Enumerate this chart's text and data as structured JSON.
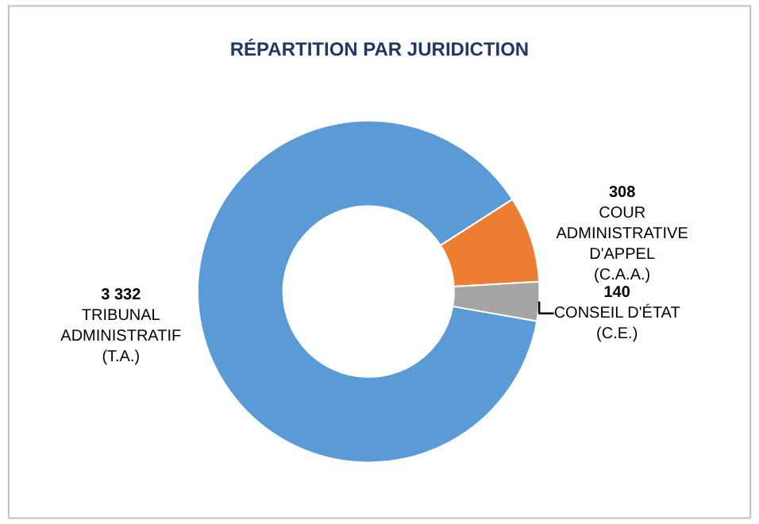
{
  "chart_data": {
    "type": "donut",
    "title": "RÉPARTITION PAR JURIDICTION",
    "categories": [
      "TRIBUNAL ADMINISTRATIF (T.A.)",
      "COUR ADMINISTRATIVE D'APPEL (C.A.A.)",
      "CONSEIL D'ÉTAT (C.E.)"
    ],
    "values": [
      3332,
      308,
      140
    ],
    "value_labels": [
      "3 332",
      "308",
      "140"
    ],
    "colors": [
      "#5b9bd5",
      "#ed7d31",
      "#a5a5a5"
    ],
    "legend": false
  }
}
